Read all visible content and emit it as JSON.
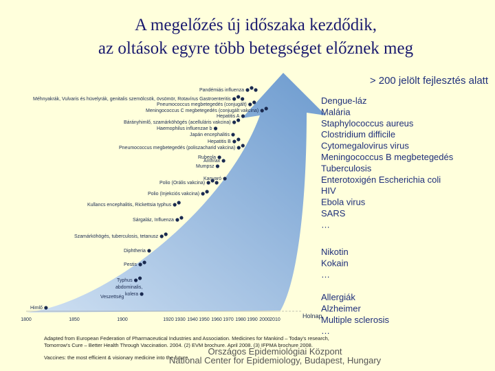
{
  "title": {
    "line1": "A megelőzés új időszaka kezdődik,",
    "line2": "az oltások egyre több betegséget előznek meg"
  },
  "candidates": {
    "heading": "> 200 jelölt fejlesztés alatt",
    "diseases": [
      "Dengue-láz",
      "Malária",
      "Staphylococcus aureus",
      "Clostridium difficile",
      "Cytomegalovirus virus",
      "Meningococcus B megbetegedés",
      "Tuberculosis",
      "Enterotoxigén Escherichia coli",
      "HIV",
      "Ebola virus",
      "SARS",
      "…"
    ]
  },
  "addictions": [
    "Nikotin",
    "Kokain",
    "…"
  ],
  "other": [
    "Allergiák",
    "Alzheimer",
    "Multiple sclerosis",
    "…"
  ],
  "timeline": {
    "labels": [
      "Pandémiás influenza",
      "Méhnyakrák, Vulvaris és hüvelyrák, genitalis szemölcsök, övsömör, Rotavírus Gastroenteritis",
      "Pneumococcus megbetegedés (conjugált)",
      "Meningococcus C megbetegedés (conjugált vakcina)",
      "Hepatitis A",
      "Bárányhimlő, szamárköhögés (acelluláris vakcina)",
      "Haemophilus influenzae b",
      "Japán encephalitis",
      "Hepatitis B",
      "Pneumococcus megbetegedés (poliszacharid vakcina)",
      "Rubeola",
      "Anthrax",
      "Mumpsz",
      "Kanyaró",
      "Polio (Orális vakcina)",
      "Polio (Injekciós vakcina)",
      "Kullancs encephalitis, Rickettsia typhus",
      "Sárgaláz, Influenza",
      "Szamárköhögés, tuberculosis, tetanusz",
      "Diphtheria",
      "Pestis",
      "Typhus",
      "abdominalis,",
      "kolera",
      "Veszettség",
      "Himlő"
    ],
    "years": [
      "1800",
      "1850",
      "1900",
      "1920",
      "1930",
      "1940",
      "1950",
      "1960",
      "1970",
      "1980",
      "1990",
      "2000",
      "2010"
    ],
    "future": "Holnap"
  },
  "footer": {
    "source": "Adapted from European Federation of Pharmaceutical Industries and Association. Medicines for Mankind – Today's research, Tomorrow's Cure – Better Health Through Vaccination. 2004. (2) EVM brochure. April 2008. (3) IFPMA brochure 2008.",
    "motto": "Vaccines: the most efficient & visionary medicine into the future",
    "institute": "Országos Epidemiológiai Központ",
    "institute_en": "National Center for Epidemiology, Budapest, Hungary"
  }
}
